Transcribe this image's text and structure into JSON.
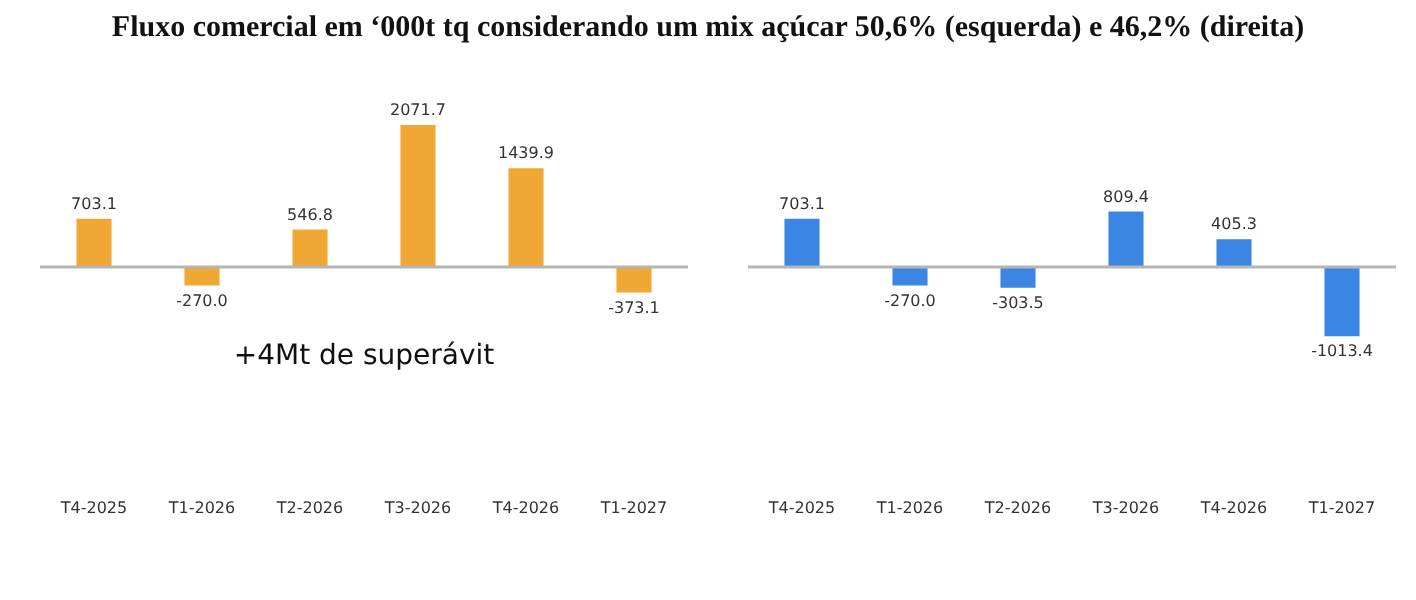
{
  "chart_data": [
    {
      "type": "bar",
      "title": "Fluxo comercial em ‘000t tq considerando um mix açúcar 50,6% (esquerda) e 46,2% (direita)",
      "categories": [
        "T4-2025",
        "T1-2026",
        "T2-2026",
        "T3-2026",
        "T4-2026",
        "T1-2027"
      ],
      "values": [
        703.1,
        -270.0,
        546.8,
        2071.7,
        1439.9,
        -373.1
      ],
      "value_labels": [
        "703.1",
        "-270.0",
        "546.8",
        "2071.7",
        "1439.9",
        "-373.1"
      ],
      "color": "#f0a733",
      "data_labels": true,
      "tick_labels": "x",
      "legend": false,
      "grid": false,
      "annotations": [
        "+4Mt de superávit"
      ]
    },
    {
      "type": "bar",
      "categories": [
        "T4-2025",
        "T1-2026",
        "T2-2026",
        "T3-2026",
        "T4-2026",
        "T1-2027"
      ],
      "values": [
        703.1,
        -270.0,
        -303.5,
        809.4,
        405.3,
        -1013.4
      ],
      "value_labels": [
        "703.1",
        "-270.0",
        "-303.5",
        "809.4",
        "405.3",
        "-1013.4"
      ],
      "color": "#3a86e2",
      "data_labels": true,
      "tick_labels": "x",
      "legend": false,
      "grid": false
    }
  ]
}
